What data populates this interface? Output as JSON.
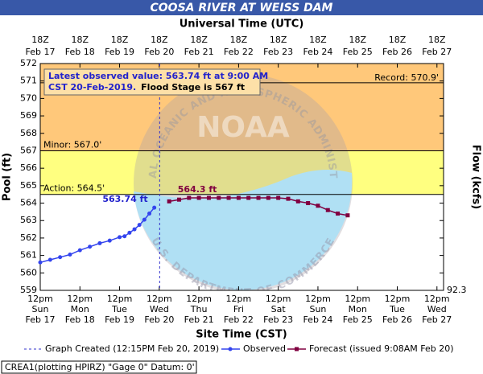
{
  "chart_data": {
    "type": "line",
    "title": "COOSA RIVER AT WEISS DAM",
    "top_axis_title": "Universal Time (UTC)",
    "x_axis_title": "Site Time (CST)",
    "y_axis_title": "Pool (ft)",
    "y2_axis_title": "Flow (kcfs)",
    "y2_bottom_label": 92.3,
    "ylim": [
      559,
      572
    ],
    "yticks": [
      559,
      560,
      561,
      562,
      563,
      564,
      565,
      566,
      567,
      568,
      569,
      570,
      571,
      572
    ],
    "xlim": [
      "Feb 17 12:00",
      "Feb 27 16:00"
    ],
    "xticks": [
      {
        "value": "Feb 17 12:00",
        "label": [
          "12pm",
          "Sun",
          "Feb 17"
        ]
      },
      {
        "value": "Feb 18 12:00",
        "label": [
          "12pm",
          "Mon",
          "Feb 18"
        ]
      },
      {
        "value": "Feb 19 12:00",
        "label": [
          "12pm",
          "Tue",
          "Feb 19"
        ]
      },
      {
        "value": "Feb 20 12:00",
        "label": [
          "12pm",
          "Wed",
          "Feb 20"
        ]
      },
      {
        "value": "Feb 21 12:00",
        "label": [
          "12pm",
          "Thu",
          "Feb 21"
        ]
      },
      {
        "value": "Feb 22 12:00",
        "label": [
          "12pm",
          "Fri",
          "Feb 22"
        ]
      },
      {
        "value": "Feb 23 12:00",
        "label": [
          "12pm",
          "Sat",
          "Feb 23"
        ]
      },
      {
        "value": "Feb 24 12:00",
        "label": [
          "12pm",
          "Sun",
          "Feb 24"
        ]
      },
      {
        "value": "Feb 25 12:00",
        "label": [
          "12pm",
          "Mon",
          "Feb 25"
        ]
      },
      {
        "value": "Feb 26 12:00",
        "label": [
          "12pm",
          "Tue",
          "Feb 26"
        ]
      },
      {
        "value": "Feb 27 12:00",
        "label": [
          "12pm",
          "Wed",
          "Feb 27"
        ]
      }
    ],
    "top_xticks": [
      {
        "value": "Feb 17 12:00",
        "label": [
          "18Z",
          "Feb 17"
        ]
      },
      {
        "value": "Feb 18 12:00",
        "label": [
          "18Z",
          "Feb 18"
        ]
      },
      {
        "value": "Feb 19 12:00",
        "label": [
          "18Z",
          "Feb 19"
        ]
      },
      {
        "value": "Feb 20 12:00",
        "label": [
          "18Z",
          "Feb 20"
        ]
      },
      {
        "value": "Feb 21 12:00",
        "label": [
          "18Z",
          "Feb 21"
        ]
      },
      {
        "value": "Feb 22 12:00",
        "label": [
          "18Z",
          "Feb 22"
        ]
      },
      {
        "value": "Feb 23 12:00",
        "label": [
          "18Z",
          "Feb 23"
        ]
      },
      {
        "value": "Feb 24 12:00",
        "label": [
          "18Z",
          "Feb 24"
        ]
      },
      {
        "value": "Feb 25 12:00",
        "label": [
          "18Z",
          "Feb 25"
        ]
      },
      {
        "value": "Feb 26 12:00",
        "label": [
          "18Z",
          "Feb 26"
        ]
      },
      {
        "value": "Feb 27 12:00",
        "label": [
          "18Z",
          "Feb 27"
        ]
      }
    ],
    "thresholds": [
      {
        "value": 570.9,
        "label": "Record: 570.9'",
        "side": "right",
        "band_color": "#ffc87a"
      },
      {
        "value": 567,
        "label": "Minor: 567.0'",
        "side": "left",
        "band_color": "#ffff80"
      },
      {
        "value": 564.5,
        "label": "Action: 564.5'",
        "side": "left",
        "band_color": "#ffff80"
      }
    ],
    "graph_created": {
      "x": "Feb 20 12:15",
      "label": "Graph Created (12:15PM Feb 20, 2019)",
      "color": "#3333cc"
    },
    "series": [
      {
        "name": "Observed",
        "color": "#3344ee",
        "marker": "circle",
        "x": [
          "Feb 17 12:00",
          "Feb 17 18:00",
          "Feb 18 00:00",
          "Feb 18 06:00",
          "Feb 18 12:00",
          "Feb 18 18:00",
          "Feb 19 00:00",
          "Feb 19 06:00",
          "Feb 19 12:00",
          "Feb 19 15:00",
          "Feb 19 18:00",
          "Feb 19 21:00",
          "Feb 20 00:00",
          "Feb 20 03:00",
          "Feb 20 06:00",
          "Feb 20 09:00"
        ],
        "values": [
          560.6,
          560.75,
          560.9,
          561.05,
          561.3,
          561.5,
          561.7,
          561.85,
          562.05,
          562.1,
          562.3,
          562.5,
          562.75,
          563.05,
          563.4,
          563.74
        ],
        "point_label": "563.74 ft",
        "point_label_value": 563.74
      },
      {
        "name": "Forecast (issued 9:08AM Feb 20)",
        "color": "#800040",
        "marker": "square",
        "x": [
          "Feb 20 18:00",
          "Feb 21 00:00",
          "Feb 21 06:00",
          "Feb 21 12:00",
          "Feb 21 18:00",
          "Feb 22 00:00",
          "Feb 22 06:00",
          "Feb 22 12:00",
          "Feb 22 18:00",
          "Feb 23 00:00",
          "Feb 23 06:00",
          "Feb 23 12:00",
          "Feb 23 18:00",
          "Feb 24 00:00",
          "Feb 24 06:00",
          "Feb 24 12:00",
          "Feb 24 18:00",
          "Feb 25 00:00",
          "Feb 25 06:00"
        ],
        "values": [
          564.1,
          564.2,
          564.3,
          564.3,
          564.3,
          564.3,
          564.3,
          564.3,
          564.3,
          564.3,
          564.3,
          564.3,
          564.25,
          564.1,
          564.0,
          563.85,
          563.6,
          563.4,
          563.3
        ],
        "point_label": "564.3 ft",
        "point_label_value": 564.3
      }
    ],
    "legend_observed": "Observed",
    "annotation": {
      "line1": "Latest observed value: 563.74 ft at 9:00 AM",
      "line2": "CST 20-Feb-2019.",
      "flood": "Flood Stage is 567 ft"
    },
    "watermark": {
      "center": "NOAA",
      "top": "NATIONAL OCEANIC AND ATMOSPHERIC ADMINISTRATION",
      "bottom": "U.S. DEPARTMENT OF COMMERCE"
    },
    "footer": "CREA1(plotting HPIRZ) \"Gage 0\" Datum: 0'"
  }
}
